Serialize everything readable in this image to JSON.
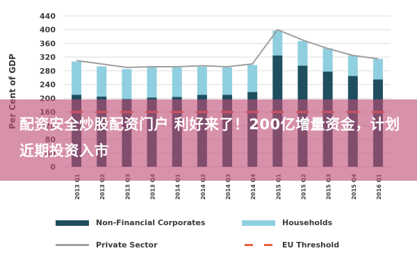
{
  "chart_data": {
    "type": "bar",
    "stacked": true,
    "ylabel": "Per Cent of GDP",
    "ylim": [
      0,
      440
    ],
    "yticks": [
      0,
      40,
      80,
      120,
      160,
      200,
      240,
      280,
      320,
      360,
      400,
      440
    ],
    "categories": [
      "2013 Q1",
      "2013 Q2",
      "2013 Q3",
      "2013 Q4",
      "2014 Q1",
      "2014 Q2",
      "2014 Q3",
      "2014 Q4",
      "2015 Q1",
      "2015 Q2",
      "2015 Q3",
      "2015 Q4",
      "2016 Q1"
    ],
    "series": [
      {
        "name": "Non-Financial Corporates",
        "kind": "bar",
        "color": "#1f4e5f",
        "values": [
          210,
          205,
          198,
          202,
          204,
          210,
          210,
          218,
          325,
          295,
          278,
          265,
          255
        ]
      },
      {
        "name": "Households",
        "kind": "bar",
        "color": "#8fcfe0",
        "values": [
          97,
          88,
          87,
          88,
          86,
          82,
          80,
          79,
          73,
          72,
          68,
          60,
          60
        ]
      },
      {
        "name": "Private Sector",
        "kind": "line",
        "color": "#9e9e9e",
        "values": [
          310,
          300,
          290,
          292,
          292,
          295,
          292,
          300,
          400,
          370,
          345,
          325,
          315
        ]
      },
      {
        "name": "EU Threshold",
        "kind": "dashed-line",
        "color": "#e8603a",
        "values": [
          160,
          160,
          160,
          160,
          160,
          160,
          160,
          160,
          160,
          160,
          160,
          160,
          160
        ]
      }
    ],
    "legend_position": "bottom",
    "grid": true
  },
  "banner": {
    "text": "配资安全炒股配资门户 利好来了！200亿增量资金，计划近期投资入市"
  }
}
